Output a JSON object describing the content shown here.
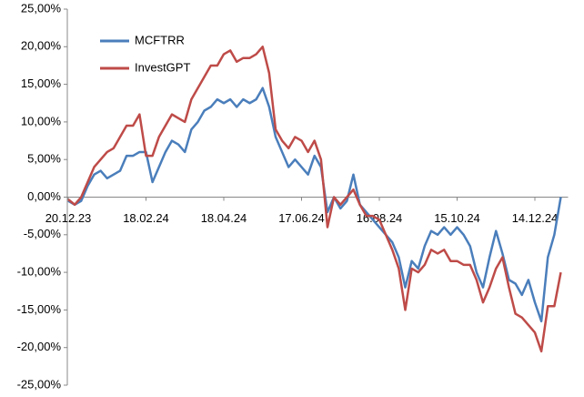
{
  "chart_data": {
    "type": "line",
    "categories": [
      "20.12.23",
      null,
      null,
      null,
      null,
      null,
      null,
      null,
      null,
      null,
      null,
      null,
      "18.02.24",
      null,
      null,
      null,
      null,
      null,
      null,
      null,
      null,
      null,
      null,
      null,
      "18.04.24",
      null,
      null,
      null,
      null,
      null,
      null,
      null,
      null,
      null,
      null,
      null,
      "17.06.24",
      null,
      null,
      null,
      null,
      null,
      null,
      null,
      null,
      null,
      null,
      null,
      "16.08.24",
      null,
      null,
      null,
      null,
      null,
      null,
      null,
      null,
      null,
      null,
      null,
      "15.10.24",
      null,
      null,
      null,
      null,
      null,
      null,
      null,
      null,
      null,
      null,
      null,
      "14.12.24",
      null,
      null,
      null,
      null
    ],
    "series": [
      {
        "name": "MCFTRR",
        "color": "#4a7ebb",
        "values": [
          -0.5,
          -1,
          -0.5,
          1.5,
          3,
          3.5,
          2.5,
          3,
          3.5,
          5.5,
          5.5,
          6,
          6,
          2,
          4,
          6,
          7.5,
          7,
          6,
          9,
          10,
          11.5,
          12,
          13,
          12.5,
          13,
          12,
          13,
          12.5,
          13,
          14.5,
          12,
          8,
          6,
          4,
          5,
          4,
          3,
          5.5,
          4,
          -2,
          0,
          -1.5,
          -0.5,
          3,
          -1,
          -2,
          -3,
          -4,
          -5,
          -6,
          -8,
          -12,
          -8.5,
          -9.5,
          -6.5,
          -4.5,
          -5,
          -4,
          -5,
          -4,
          -5,
          -6.5,
          -10,
          -12,
          -8,
          -4.5,
          -7.5,
          -11,
          -11.5,
          -13,
          -11,
          -14,
          -16.5,
          -8,
          -5,
          0
        ]
      },
      {
        "name": "InvestGPT",
        "color": "#be4b48",
        "values": [
          -0.3,
          -1,
          0,
          2,
          4,
          5,
          6,
          6.5,
          8,
          9.5,
          9.5,
          11,
          5.5,
          5.5,
          8,
          9.5,
          11,
          10.5,
          10,
          13,
          14.5,
          16,
          17.5,
          17.5,
          19,
          19.5,
          18,
          18.5,
          18.5,
          19,
          20,
          16.5,
          9,
          7.5,
          6.5,
          8,
          7.5,
          6,
          7.5,
          5,
          -4,
          0,
          -1,
          0,
          1,
          -1,
          -2.5,
          -2.5,
          -3,
          -5,
          -7,
          -9.5,
          -15,
          -9.5,
          -10,
          -9,
          -7,
          -7.5,
          -7,
          -8.5,
          -8.5,
          -9,
          -9,
          -11,
          -14,
          -12,
          -9.5,
          -8,
          -12,
          -15.5,
          -16,
          -17,
          -18,
          -20.5,
          -14.5,
          -14.5,
          -10
        ]
      }
    ],
    "ylim": [
      -25,
      25
    ],
    "yticks": [
      {
        "value": -25,
        "label": "-25,00%"
      },
      {
        "value": -20,
        "label": "-20,00%"
      },
      {
        "value": -15,
        "label": "-15,00%"
      },
      {
        "value": -10,
        "label": "-10,00%"
      },
      {
        "value": -5,
        "label": "-5,00%"
      },
      {
        "value": 0,
        "label": "0,00%"
      },
      {
        "value": 5,
        "label": "5,00%"
      },
      {
        "value": 10,
        "label": "10,00%"
      },
      {
        "value": 15,
        "label": "15,00%"
      },
      {
        "value": 20,
        "label": "20,00%"
      },
      {
        "value": 25,
        "label": "25,00%"
      }
    ],
    "legend": "upper left"
  }
}
